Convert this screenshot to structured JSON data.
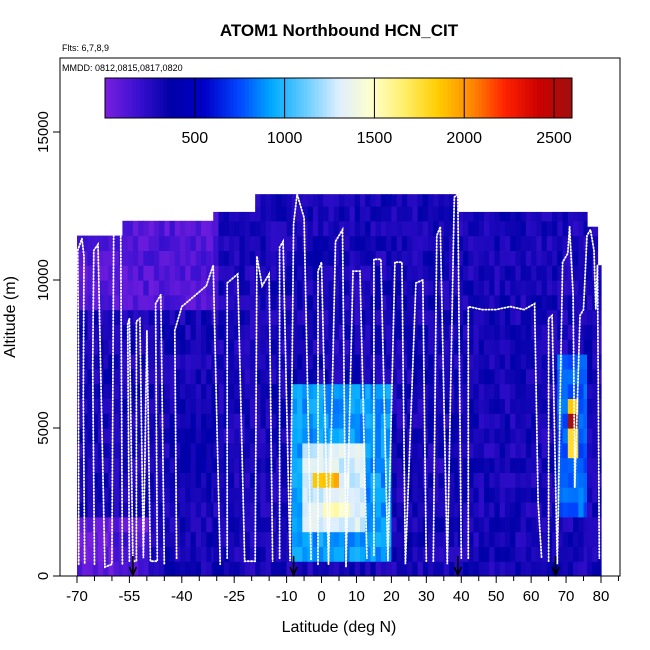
{
  "chart_data": {
    "type": "heatmap",
    "title": "ATOM1 Northbound HCN_CIT",
    "annotations": {
      "flights": "Flts: 6,7,8,9",
      "dates": "MMDD: 0812,0815,0817,0820"
    },
    "xlabel": "Latitude (deg N)",
    "ylabel": "Altitude (m)",
    "xlim": [
      -70,
      85
    ],
    "ylim": [
      0,
      17500
    ],
    "x_ticks": [
      {
        "value": -70,
        "label": "-70"
      },
      {
        "value": -55,
        "label": "-55"
      },
      {
        "value": -40,
        "label": "-40"
      },
      {
        "value": -25,
        "label": "-25"
      },
      {
        "value": -10,
        "label": "-10"
      },
      {
        "value": 0,
        "label": "0"
      },
      {
        "value": 10,
        "label": "10"
      },
      {
        "value": 20,
        "label": "20"
      },
      {
        "value": 30,
        "label": "30"
      },
      {
        "value": 40,
        "label": "40"
      },
      {
        "value": 50,
        "label": "50"
      },
      {
        "value": 60,
        "label": "60"
      },
      {
        "value": 70,
        "label": "70"
      },
      {
        "value": 80,
        "label": "80"
      }
    ],
    "x_minor_ticks": [
      -65,
      -60,
      -50,
      -45,
      -35,
      -30,
      -20,
      -15,
      -5,
      5,
      15,
      25,
      35,
      45,
      55,
      65,
      75,
      85
    ],
    "y_ticks": [
      {
        "value": 0,
        "label": "0"
      },
      {
        "value": 5000,
        "label": "5000"
      },
      {
        "value": 10000,
        "label": "10000"
      },
      {
        "value": 15000,
        "label": "15000"
      }
    ],
    "colorbar": {
      "min": 0,
      "max": 2600,
      "ticks": [
        {
          "value": 500,
          "label": "500"
        },
        {
          "value": 1000,
          "label": "1000"
        },
        {
          "value": 1500,
          "label": "1500"
        },
        {
          "value": 2000,
          "label": "2000"
        },
        {
          "value": 2500,
          "label": "2500"
        }
      ],
      "colors": [
        "#7a1fe0",
        "#3a10d0",
        "#0000a8",
        "#0000c8",
        "#0044ff",
        "#00aaff",
        "#66ccff",
        "#ddeeff",
        "#ffffcc",
        "#ffee66",
        "#ffcc00",
        "#ff8800",
        "#ff2200",
        "#cc0000",
        "#a01010"
      ]
    },
    "marker_arrows_lat": [
      -54,
      -8,
      39,
      67
    ],
    "columns": [
      {
        "lat": [
          -70,
          -68.5
        ],
        "top": 11500
      },
      {
        "lat": [
          -68.5,
          -57
        ],
        "top": 11500
      },
      {
        "lat": [
          -57,
          -31
        ],
        "top": 12000
      },
      {
        "lat": [
          -31,
          -19
        ],
        "top": 12300
      },
      {
        "lat": [
          -19,
          39
        ],
        "top": 12900
      },
      {
        "lat": [
          39,
          76
        ],
        "top": 12300
      },
      {
        "lat": [
          76,
          79
        ],
        "top": 11800
      },
      {
        "lat": [
          79,
          80
        ],
        "top": 10500
      }
    ],
    "enhancements": [
      {
        "lat": [
          -8,
          20
        ],
        "alt": [
          500,
          6500
        ],
        "value": 900
      },
      {
        "lat": [
          -6,
          12
        ],
        "alt": [
          1500,
          4500
        ],
        "value": 1300
      },
      {
        "lat": [
          -3,
          5
        ],
        "alt": [
          2800,
          3600
        ],
        "value": 1900
      },
      {
        "lat": [
          0,
          8
        ],
        "alt": [
          1800,
          2600
        ],
        "value": 1500
      },
      {
        "lat": [
          68,
          76
        ],
        "alt": [
          2000,
          7500
        ],
        "value": 800
      },
      {
        "lat": [
          70,
          74
        ],
        "alt": [
          4000,
          6000
        ],
        "value": 1800
      },
      {
        "lat": [
          71,
          73
        ],
        "alt": [
          4800,
          5600
        ],
        "value": 2600
      },
      {
        "lat": [
          -40,
          -30
        ],
        "alt": [
          3000,
          6000
        ],
        "value": 350
      },
      {
        "lat": [
          -60,
          -45
        ],
        "alt": [
          0,
          1500
        ],
        "value": 150
      },
      {
        "lat": [
          48,
          60
        ],
        "alt": [
          0,
          2500
        ],
        "value": 250
      }
    ],
    "background_value": 300,
    "profiles": [
      [
        [
          -69.5,
          400
        ],
        [
          -69.6,
          8000
        ],
        [
          -69.8,
          11000
        ],
        [
          -68.6,
          11400
        ],
        [
          -68,
          10800
        ],
        [
          -68.2,
          6000
        ],
        [
          -67.8,
          400
        ]
      ],
      [
        [
          -65,
          400
        ],
        [
          -65.5,
          7000
        ],
        [
          -65.2,
          11000
        ],
        [
          -64,
          11200
        ],
        [
          -62,
          300
        ],
        [
          -60,
          400
        ],
        [
          -59.5,
          11600
        ],
        [
          -57.5,
          11800
        ],
        [
          -57,
          400
        ]
      ],
      [
        [
          -55,
          500
        ],
        [
          -55.5,
          8500
        ],
        [
          -55,
          8700
        ],
        [
          -54,
          500
        ],
        [
          -53,
          500
        ],
        [
          -53,
          8600
        ],
        [
          -52,
          8700
        ],
        [
          -51,
          600
        ],
        [
          -50,
          8300
        ],
        [
          -49,
          500
        ],
        [
          -47,
          500
        ],
        [
          -47.5,
          9200
        ],
        [
          -46,
          9500
        ],
        [
          -45,
          400
        ]
      ],
      [
        [
          -41.5,
          600
        ],
        [
          -42,
          8300
        ],
        [
          -40,
          9100
        ],
        [
          -36,
          9500
        ],
        [
          -33,
          9800
        ],
        [
          -31,
          10500
        ],
        [
          -29,
          400
        ]
      ],
      [
        [
          -27,
          600
        ],
        [
          -27,
          9900
        ],
        [
          -24,
          10200
        ],
        [
          -22,
          500
        ],
        [
          -19,
          500
        ],
        [
          -18.5,
          10800
        ],
        [
          -17,
          9800
        ],
        [
          -15,
          10200
        ],
        [
          -14,
          500
        ]
      ],
      [
        [
          -12,
          600
        ],
        [
          -12,
          11100
        ],
        [
          -11,
          11300
        ],
        [
          -9,
          500
        ],
        [
          -8,
          11900
        ],
        [
          -7,
          12900
        ],
        [
          -5,
          12100
        ],
        [
          -3,
          500
        ]
      ],
      [
        [
          -1,
          400
        ],
        [
          -1,
          10300
        ],
        [
          0,
          10600
        ],
        [
          2,
          400
        ],
        [
          4,
          11300
        ],
        [
          6,
          11700
        ],
        [
          7,
          300
        ],
        [
          9,
          10300
        ],
        [
          11,
          10300
        ],
        [
          13,
          600
        ]
      ],
      [
        [
          15,
          700
        ],
        [
          15,
          10700
        ],
        [
          17,
          10700
        ],
        [
          19,
          500
        ],
        [
          21,
          10600
        ],
        [
          23,
          10600
        ],
        [
          24,
          400
        ],
        [
          27,
          9900
        ],
        [
          29,
          10000
        ],
        [
          30,
          500
        ]
      ],
      [
        [
          32,
          500
        ],
        [
          33,
          11500
        ],
        [
          34,
          11800
        ],
        [
          36,
          400
        ],
        [
          38,
          12800
        ],
        [
          39,
          12900
        ],
        [
          40,
          600
        ]
      ],
      [
        [
          42,
          600
        ],
        [
          42,
          9100
        ],
        [
          46,
          9000
        ],
        [
          50,
          9000
        ],
        [
          54,
          9100
        ],
        [
          58,
          9000
        ],
        [
          61,
          9200
        ],
        [
          62,
          2500
        ],
        [
          63,
          600
        ]
      ],
      [
        [
          65,
          500
        ],
        [
          65,
          8700
        ],
        [
          66,
          8800
        ],
        [
          67.5,
          400
        ],
        [
          69,
          10600
        ],
        [
          70.5,
          10900
        ],
        [
          71,
          11800
        ],
        [
          72,
          9500
        ],
        [
          72.5,
          3000
        ],
        [
          74,
          8800
        ],
        [
          75,
          9000
        ],
        [
          76,
          11500
        ],
        [
          77,
          11700
        ],
        [
          78,
          11000
        ],
        [
          78.5,
          9000
        ],
        [
          79,
          10500
        ],
        [
          79.5,
          600
        ]
      ]
    ]
  }
}
